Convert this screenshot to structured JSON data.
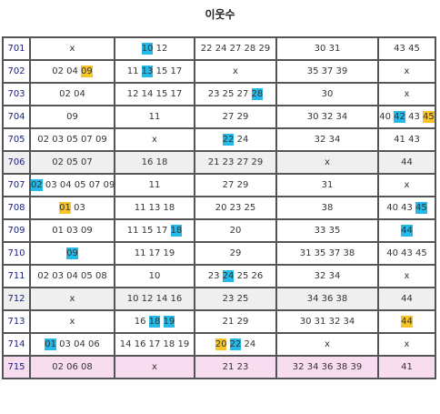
{
  "header": {
    "title": "이웃수"
  },
  "colors": {
    "blue": "#25b9e8",
    "yellow": "#f7c52a"
  },
  "table": {
    "rows": [
      {
        "label": "701",
        "cells": [
          [
            "x"
          ],
          [
            {
              "text": "10",
              "hl": "blue"
            },
            "12"
          ],
          [
            "22",
            "24",
            "27",
            "28",
            "29"
          ],
          [
            "30",
            "31"
          ],
          [
            "43",
            "45"
          ]
        ]
      },
      {
        "label": "702",
        "cells": [
          [
            "02",
            "04",
            {
              "text": "09",
              "hl": "yellow"
            }
          ],
          [
            "11",
            {
              "text": "13",
              "hl": "blue"
            },
            "15",
            "17"
          ],
          [
            "x"
          ],
          [
            "35",
            "37",
            "39"
          ],
          [
            "x"
          ]
        ]
      },
      {
        "label": "703",
        "cells": [
          [
            "02",
            "04"
          ],
          [
            "12",
            "14",
            "15",
            "17"
          ],
          [
            "23",
            "25",
            "27",
            {
              "text": "28",
              "hl": "blue"
            }
          ],
          [
            "30"
          ],
          [
            "x"
          ]
        ]
      },
      {
        "label": "704",
        "cells": [
          [
            "09"
          ],
          [
            "11"
          ],
          [
            "27",
            "29"
          ],
          [
            "30",
            "32",
            "34"
          ],
          [
            "40",
            {
              "text": "42",
              "hl": "blue"
            },
            "43",
            {
              "text": "45",
              "hl": "yellow"
            }
          ]
        ]
      },
      {
        "label": "705",
        "cells": [
          [
            "02",
            "03",
            "05",
            "07",
            "09"
          ],
          [
            "x"
          ],
          [
            {
              "text": "22",
              "hl": "blue"
            },
            "24"
          ],
          [
            "32",
            "34"
          ],
          [
            "41",
            "43"
          ]
        ]
      },
      {
        "label": "706",
        "bg": "#efefef",
        "cells": [
          [
            "02",
            "05",
            "07"
          ],
          [
            "16",
            "18"
          ],
          [
            "21",
            "23",
            "27",
            "29"
          ],
          [
            "x"
          ],
          [
            "44"
          ]
        ]
      },
      {
        "label": "707",
        "cells": [
          [
            {
              "text": "02",
              "hl": "blue"
            },
            "03",
            "04",
            "05",
            "07",
            "09"
          ],
          [
            "11"
          ],
          [
            "27",
            "29"
          ],
          [
            "31"
          ],
          [
            "x"
          ]
        ]
      },
      {
        "label": "708",
        "cells": [
          [
            {
              "text": "01",
              "hl": "yellow"
            },
            "03"
          ],
          [
            "11",
            "13",
            "18"
          ],
          [
            "20",
            "23",
            "25"
          ],
          [
            "38"
          ],
          [
            "40",
            "43",
            {
              "text": "45",
              "hl": "blue"
            }
          ]
        ]
      },
      {
        "label": "709",
        "cells": [
          [
            "01",
            "03",
            "09"
          ],
          [
            "11",
            "15",
            "17",
            {
              "text": "18",
              "hl": "blue"
            }
          ],
          [
            "20"
          ],
          [
            "33",
            "35"
          ],
          [
            {
              "text": "44",
              "hl": "blue"
            }
          ]
        ]
      },
      {
        "label": "710",
        "cells": [
          [
            {
              "text": "09",
              "hl": "blue"
            }
          ],
          [
            "11",
            "17",
            "19"
          ],
          [
            "29"
          ],
          [
            "31",
            "35",
            "37",
            "38"
          ],
          [
            "40",
            "43",
            "45"
          ]
        ]
      },
      {
        "label": "711",
        "cells": [
          [
            "02",
            "03",
            "04",
            "05",
            "08"
          ],
          [
            "10"
          ],
          [
            "23",
            {
              "text": "24",
              "hl": "blue"
            },
            "25",
            "26"
          ],
          [
            "32",
            "34"
          ],
          [
            "x"
          ]
        ]
      },
      {
        "label": "712",
        "bg": "#efefef",
        "cells": [
          [
            "x"
          ],
          [
            "10",
            "12",
            "14",
            "16"
          ],
          [
            "23",
            "25"
          ],
          [
            "34",
            "36",
            "38"
          ],
          [
            "44"
          ]
        ]
      },
      {
        "label": "713",
        "cells": [
          [
            "x"
          ],
          [
            "16",
            {
              "text": "18",
              "hl": "blue"
            },
            {
              "text": "19",
              "hl": "blue"
            }
          ],
          [
            "21",
            "29"
          ],
          [
            "30",
            "31",
            "32",
            "34"
          ],
          [
            {
              "text": "44",
              "hl": "yellow"
            }
          ]
        ]
      },
      {
        "label": "714",
        "cells": [
          [
            {
              "text": "01",
              "hl": "blue"
            },
            "03",
            "04",
            "06"
          ],
          [
            "14",
            "16",
            "17",
            "18",
            "19"
          ],
          [
            {
              "text": "20",
              "hl": "yellow"
            },
            {
              "text": "22",
              "hl": "blue"
            },
            "24"
          ],
          [
            "x"
          ],
          [
            "x"
          ]
        ]
      },
      {
        "label": "715",
        "bg": "#f8dcf0",
        "cells": [
          [
            "02",
            "06",
            "08"
          ],
          [
            "x"
          ],
          [
            "21",
            "23"
          ],
          [
            "32",
            "34",
            "36",
            "38",
            "39"
          ],
          [
            "41"
          ]
        ]
      }
    ]
  }
}
